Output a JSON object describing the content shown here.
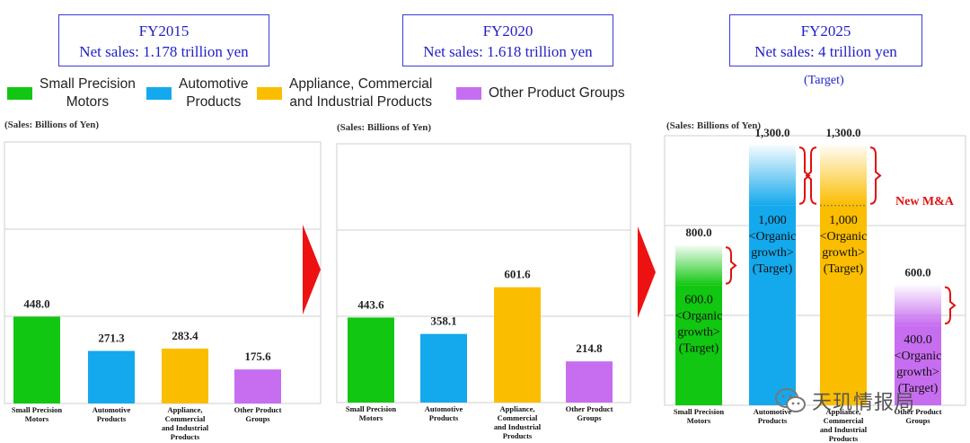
{
  "panels": [
    {
      "year": "FY2015",
      "net_sales": "Net sales: 1.178 trillion yen",
      "note": ""
    },
    {
      "year": "FY2020",
      "net_sales": "Net sales: 1.618 trillion yen",
      "note": ""
    },
    {
      "year": "FY2025",
      "net_sales": "Net sales: 4 trillion yen",
      "note": "(Target)"
    }
  ],
  "legend": [
    {
      "lines": [
        "Small Precision",
        "Motors"
      ],
      "color": "#11c711"
    },
    {
      "lines": [
        "Automotive",
        "Products"
      ],
      "color": "#14a9ec"
    },
    {
      "lines": [
        "Appliance, Commercial",
        "and Industrial Products"
      ],
      "color": "#fbbd00"
    },
    {
      "lines": [
        "Other Product Groups"
      ],
      "color": "#c76df0"
    }
  ],
  "units_label": "(Sales: Billions of Yen)",
  "annotation": "New M&A",
  "watermark": "天玑情报局",
  "colors": {
    "arrow": "#ee1111",
    "title": "#1f1fc8",
    "bracket": "#e01010",
    "annotation": "#e01010",
    "grid": "#cfcfcf"
  },
  "chart_data": [
    {
      "type": "bar",
      "categories": [
        [
          "Small Precision",
          "Motors"
        ],
        [
          "Automotive",
          "Products"
        ],
        [
          "Appliance,",
          "Commercial",
          "and Industrial",
          "Products"
        ],
        [
          "Other Product",
          "Groups"
        ]
      ],
      "values": [
        448.0,
        271.3,
        283.4,
        175.6
      ],
      "value_labels": [
        "448.0",
        "271.3",
        "283.4",
        "175.6"
      ],
      "ylim": [
        0,
        1350
      ],
      "gridlines": [
        450,
        900
      ],
      "colors": [
        "#11c711",
        "#14a9ec",
        "#fbbd00",
        "#c76df0"
      ]
    },
    {
      "type": "bar",
      "categories": [
        [
          "Small Precision",
          "Motors"
        ],
        [
          "Automotive",
          "Products"
        ],
        [
          "Appliance,",
          "Commercial",
          "and Industrial",
          "Products"
        ],
        [
          "Other Product",
          "Groups"
        ]
      ],
      "values": [
        443.6,
        358.1,
        601.6,
        214.8
      ],
      "value_labels": [
        "443.6",
        "358.1",
        "601.6",
        "214.8"
      ],
      "ylim": [
        0,
        1350
      ],
      "gridlines": [
        450,
        900
      ],
      "colors": [
        "#11c711",
        "#14a9ec",
        "#fbbd00",
        "#c76df0"
      ]
    },
    {
      "type": "bar",
      "categories": [
        [
          "Small Precision",
          "Motors"
        ],
        [
          "Automotive",
          "Products"
        ],
        [
          "Appliance,",
          "Commercial",
          "and Industrial",
          "Products"
        ],
        [
          "Other Product",
          "Groups"
        ]
      ],
      "values": [
        800.0,
        1300.0,
        1300.0,
        600.0
      ],
      "value_labels": [
        "800.0",
        "1,300.0",
        "1,300.0",
        "600.0"
      ],
      "organic_values": [
        600.0,
        1000.0,
        1000.0,
        400.0
      ],
      "organic_labels": [
        [
          "600.0",
          "<Organic",
          "growth>",
          "(Target)"
        ],
        [
          "1,000",
          "<Organic",
          "growth>",
          "(Target)"
        ],
        [
          "1,000",
          "<Organic",
          "growth>",
          "(Target)"
        ],
        [
          "400.0",
          "<Organic",
          "growth>",
          "(Target)"
        ]
      ],
      "ylim": [
        0,
        1350
      ],
      "gridlines": [
        450,
        900
      ],
      "colors": [
        "#11c711",
        "#14a9ec",
        "#fbbd00",
        "#c76df0"
      ]
    }
  ]
}
